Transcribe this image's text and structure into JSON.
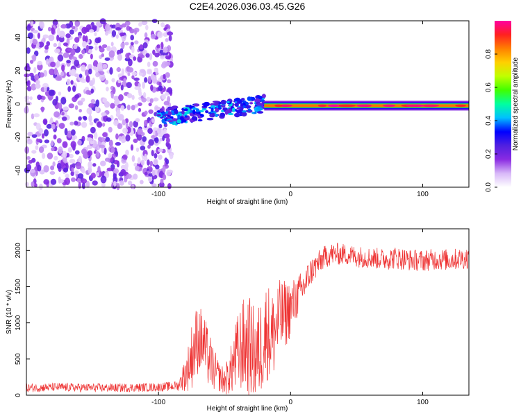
{
  "chart_data": [
    {
      "type": "heatmap",
      "title": "C2E4.2026.036.03.45.G26",
      "xlabel": "Height of straight line (km)",
      "ylabel": "Frequency (Hz)",
      "xlim": [
        -200,
        135
      ],
      "ylim": [
        -50,
        50
      ],
      "x_ticks": [
        -100,
        0,
        100
      ],
      "y_ticks": [
        -40,
        -20,
        0,
        20,
        40
      ],
      "colorbar": {
        "label": "Normalized spectral amplitude",
        "range": [
          0.0,
          1.0
        ],
        "ticks": [
          0.0,
          0.2,
          0.4,
          0.6,
          0.8
        ],
        "colors": [
          "#ffffff",
          "#d8b8f8",
          "#8a2be2",
          "#5020e0",
          "#0000ff",
          "#00c0ff",
          "#00ffa0",
          "#40ff00",
          "#c0ff00",
          "#ffd000",
          "#ff8000",
          "#ff2020",
          "#ff00a0"
        ]
      },
      "regions": [
        {
          "name": "noise",
          "x": [
            -200,
            -90
          ],
          "freq": [
            -50,
            50
          ],
          "amplitude": [
            0.05,
            0.25
          ]
        },
        {
          "name": "transition",
          "x": [
            -100,
            -20
          ],
          "freq": [
            -15,
            10
          ],
          "amplitude": [
            0.2,
            0.45
          ]
        },
        {
          "name": "carrier",
          "x": [
            -20,
            135
          ],
          "freq": [
            -2,
            0
          ],
          "amplitude": [
            0.6,
            1.0
          ]
        }
      ]
    },
    {
      "type": "line",
      "xlabel": "Height of straight line (km)",
      "ylabel": "SNR (10 * v/v)",
      "xlim": [
        -200,
        135
      ],
      "ylim": [
        0,
        2300
      ],
      "x_ticks": [
        -100,
        0,
        100
      ],
      "y_ticks": [
        0,
        500,
        1000,
        1500,
        2000
      ],
      "color": "#ee3333",
      "series": [
        {
          "name": "SNR",
          "x": [
            -200,
            -180,
            -160,
            -140,
            -120,
            -100,
            -85,
            -78,
            -74,
            -70,
            -66,
            -62,
            -58,
            -54,
            -50,
            -46,
            -42,
            -38,
            -34,
            -30,
            -26,
            -22,
            -18,
            -14,
            -10,
            -5,
            0,
            5,
            10,
            15,
            20,
            25,
            30,
            40,
            50,
            60,
            70,
            80,
            90,
            100,
            110,
            120,
            135
          ],
          "mean": [
            100,
            110,
            105,
            100,
            105,
            110,
            130,
            350,
            600,
            800,
            700,
            500,
            350,
            250,
            200,
            300,
            500,
            650,
            700,
            650,
            500,
            700,
            900,
            800,
            1000,
            1100,
            1200,
            1350,
            1500,
            1700,
            1800,
            1900,
            1950,
            1950,
            1920,
            1900,
            1880,
            1900,
            1870,
            1860,
            1880,
            1870,
            1900
          ],
          "spread": [
            60,
            60,
            60,
            60,
            60,
            60,
            70,
            300,
            500,
            500,
            450,
            400,
            300,
            200,
            200,
            300,
            500,
            600,
            700,
            700,
            650,
            700,
            700,
            650,
            600,
            500,
            400,
            300,
            250,
            200,
            180,
            160,
            160,
            150,
            150,
            150,
            150,
            160,
            150,
            150,
            150,
            150,
            150
          ]
        }
      ]
    }
  ],
  "colors": {
    "line": "#ee3333",
    "frame": "#000000"
  }
}
